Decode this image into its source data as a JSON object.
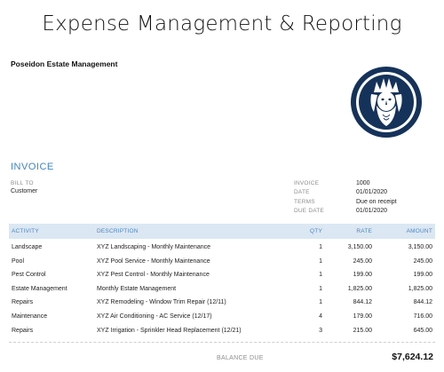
{
  "banner_title": "Expense Management & Reporting",
  "company_name": "Poseidon Estate Management",
  "logo_name": "poseidon-logo",
  "document_title": "INVOICE",
  "bill_to": {
    "label": "BILL TO",
    "value": "Customer"
  },
  "meta": [
    {
      "label": "INVOICE",
      "value": "1000"
    },
    {
      "label": "DATE",
      "value": "01/01/2020"
    },
    {
      "label": "TERMS",
      "value": "Due on receipt"
    },
    {
      "label": "DUE DATE",
      "value": "01/01/2020"
    }
  ],
  "table": {
    "headers": {
      "activity": "ACTIVITY",
      "description": "DESCRIPTION",
      "qty": "QTY",
      "rate": "RATE",
      "amount": "AMOUNT"
    },
    "rows": [
      {
        "activity": "Landscape",
        "description": "XYZ Landscaping - Monthly Maintenance",
        "qty": "1",
        "rate": "3,150.00",
        "amount": "3,150.00"
      },
      {
        "activity": "Pool",
        "description": "XYZ Pool Service - Monthly Maintenance",
        "qty": "1",
        "rate": "245.00",
        "amount": "245.00"
      },
      {
        "activity": "Pest Control",
        "description": "XYZ Pest Control - Monthly Maintenance",
        "qty": "1",
        "rate": "199.00",
        "amount": "199.00"
      },
      {
        "activity": "Estate Management",
        "description": "Monthly Estate Management",
        "qty": "1",
        "rate": "1,825.00",
        "amount": "1,825.00"
      },
      {
        "activity": "Repairs",
        "description": "XYZ Remodeling - Window Trim Repair (12/11)",
        "qty": "1",
        "rate": "844.12",
        "amount": "844.12"
      },
      {
        "activity": "Maintenance",
        "description": "XYZ Air Conditioning - AC Service (12/17)",
        "qty": "4",
        "rate": "179.00",
        "amount": "716.00"
      },
      {
        "activity": "Repairs",
        "description": "XYZ Irrigation - Sprinkler Head Replacement (12/21)",
        "qty": "3",
        "rate": "215.00",
        "amount": "645.00"
      }
    ]
  },
  "balance_due": {
    "label": "BALANCE DUE",
    "value": "$7,624.12"
  },
  "colors": {
    "accent": "#3f86c4",
    "header_bg": "#dbe7f3",
    "logo_navy": "#15325a"
  }
}
